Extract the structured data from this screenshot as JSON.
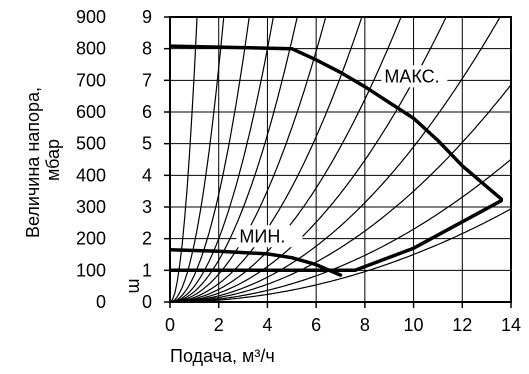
{
  "chart_data": {
    "type": "line",
    "title": "",
    "xlabel": "Подача, м³/ч",
    "ylabel": "Величина напора, мбар",
    "y2label": "m",
    "xlim": [
      0,
      14
    ],
    "ylim": [
      0,
      900
    ],
    "y2lim": [
      0,
      9
    ],
    "x_ticks": [
      "0",
      "2",
      "4",
      "6",
      "8",
      "10",
      "12",
      "14"
    ],
    "y_ticks": [
      "0",
      "100",
      "200",
      "300",
      "400",
      "500",
      "600",
      "700",
      "800",
      "900"
    ],
    "y2_ticks": [
      "0",
      "1",
      "2",
      "3",
      "4",
      "5",
      "6",
      "7",
      "8",
      "9"
    ],
    "grid": true,
    "series": [
      {
        "name": "МАКС.",
        "x": [
          0,
          5,
          6,
          7,
          8,
          9,
          10,
          11,
          12,
          13.6
        ],
        "y": [
          808,
          800,
          765,
          725,
          680,
          630,
          580,
          510,
          430,
          325
        ]
      },
      {
        "name": "МИН.",
        "x": [
          0,
          2,
          4,
          5,
          6,
          7
        ],
        "y": [
          165,
          160,
          152,
          140,
          118,
          85
        ]
      },
      {
        "name": "",
        "x": [
          0,
          7.6
        ],
        "y": [
          100,
          100
        ]
      },
      {
        "name": "",
        "x": [
          7.6,
          10,
          13.6
        ],
        "y": [
          100,
          170,
          320
        ]
      }
    ],
    "system_curves_k": [
      730,
      185,
      85,
      50,
      33,
      22,
      14.5,
      10,
      7,
      4.9,
      3.5,
      2.3,
      1.5
    ],
    "colors": {
      "curve": "#000000",
      "grid": "#000000",
      "background": "#ffffff"
    }
  }
}
